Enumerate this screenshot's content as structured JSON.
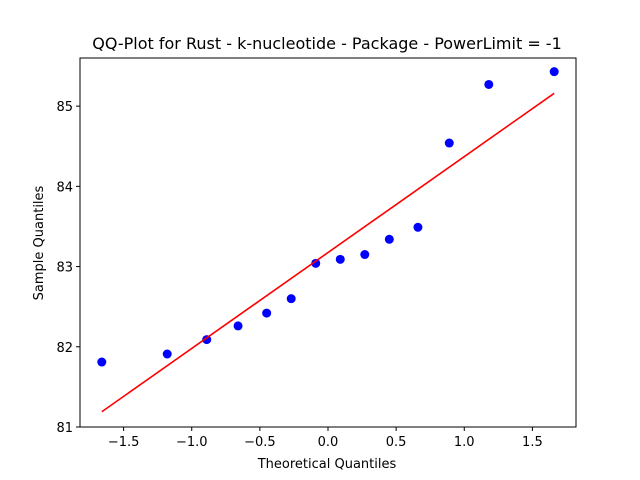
{
  "chart_data": {
    "type": "scatter",
    "title": "QQ-Plot for Rust - k-nucleotide - Package - PowerLimit = -1",
    "xlabel": "Theoretical Quantiles",
    "ylabel": "Sample Quantiles",
    "xlim": [
      -1.82,
      1.82
    ],
    "ylim": [
      81.0,
      85.6
    ],
    "xticks": [
      -1.5,
      -1.0,
      -0.5,
      0.0,
      0.5,
      1.0,
      1.5
    ],
    "xtick_labels": [
      "−1.5",
      "−1.0",
      "−0.5",
      "0.0",
      "0.5",
      "1.0",
      "1.5"
    ],
    "yticks": [
      81,
      82,
      83,
      84,
      85
    ],
    "ytick_labels": [
      "81",
      "82",
      "83",
      "84",
      "85"
    ],
    "grid": false,
    "points": {
      "color": "#0000ff",
      "x": [
        -1.66,
        -1.18,
        -0.89,
        -0.66,
        -0.45,
        -0.27,
        -0.09,
        0.09,
        0.27,
        0.45,
        0.66,
        0.89,
        1.18,
        1.66
      ],
      "y": [
        81.81,
        81.91,
        82.09,
        82.26,
        82.42,
        82.6,
        83.04,
        83.09,
        83.15,
        83.34,
        83.49,
        84.54,
        85.27,
        85.43
      ]
    },
    "fit_line": {
      "color": "#ff0000",
      "x": [
        -1.66,
        1.66
      ],
      "y": [
        81.19,
        85.16
      ]
    }
  }
}
